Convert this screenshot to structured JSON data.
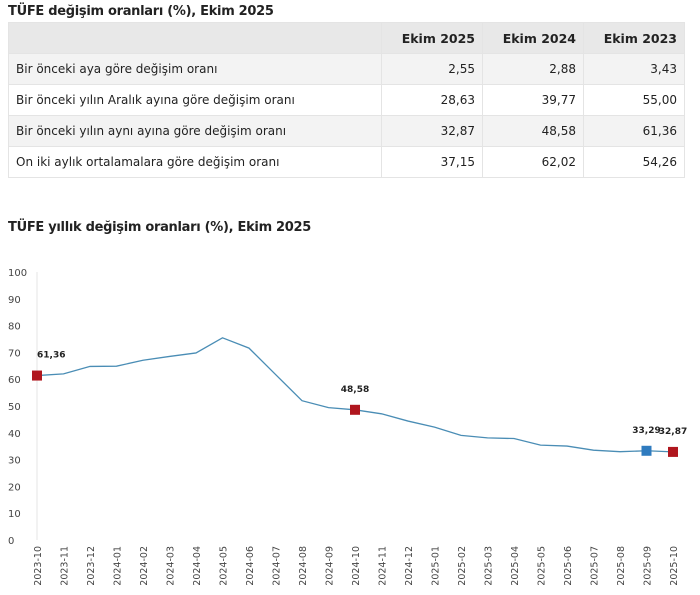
{
  "table": {
    "title": "TÜFE değişim oranları (%), Ekim 2025",
    "headers": [
      "",
      "Ekim 2025",
      "Ekim 2024",
      "Ekim 2023"
    ],
    "rows": [
      {
        "label": "Bir önceki aya göre değişim oranı",
        "values": [
          "2,55",
          "2,88",
          "3,43"
        ]
      },
      {
        "label": "Bir önceki yılın Aralık ayına göre değişim oranı",
        "values": [
          "28,63",
          "39,77",
          "55,00"
        ]
      },
      {
        "label": "Bir önceki yılın aynı ayına göre değişim oranı",
        "values": [
          "32,87",
          "48,58",
          "61,36"
        ]
      },
      {
        "label": "On iki aylık ortalamalara göre değişim oranı",
        "values": [
          "37,15",
          "62,02",
          "54,26"
        ]
      }
    ]
  },
  "chart_data": {
    "type": "line",
    "title": "TÜFE yıllık değişim oranları (%), Ekim 2025",
    "xlabel": "",
    "ylabel": "",
    "ylim": [
      0,
      100
    ],
    "yticks": [
      0,
      10,
      20,
      30,
      40,
      50,
      60,
      70,
      80,
      90,
      100
    ],
    "x": [
      "2023-10",
      "2023-11",
      "2023-12",
      "2024-01",
      "2024-02",
      "2024-03",
      "2024-04",
      "2024-05",
      "2024-06",
      "2024-07",
      "2024-08",
      "2024-09",
      "2024-10",
      "2024-11",
      "2024-12",
      "2025-01",
      "2025-02",
      "2025-03",
      "2025-04",
      "2025-05",
      "2025-06",
      "2025-07",
      "2025-08",
      "2025-09",
      "2025-10"
    ],
    "values": [
      61.36,
      61.98,
      64.77,
      64.86,
      67.07,
      68.5,
      69.8,
      75.45,
      71.6,
      61.78,
      51.97,
      49.38,
      48.58,
      47.09,
      44.38,
      42.12,
      39.05,
      38.1,
      37.86,
      35.41,
      35.05,
      33.52,
      32.95,
      33.29,
      32.87
    ],
    "markers": [
      {
        "index": 0,
        "label": "61,36",
        "color": "#b0161e"
      },
      {
        "index": 12,
        "label": "48,58",
        "color": "#b0161e"
      },
      {
        "index": 23,
        "label": "33,29",
        "color": "#2f7bbf"
      },
      {
        "index": 24,
        "label": "32,87",
        "color": "#b0161e"
      }
    ],
    "line_color": "#4a8db5"
  }
}
